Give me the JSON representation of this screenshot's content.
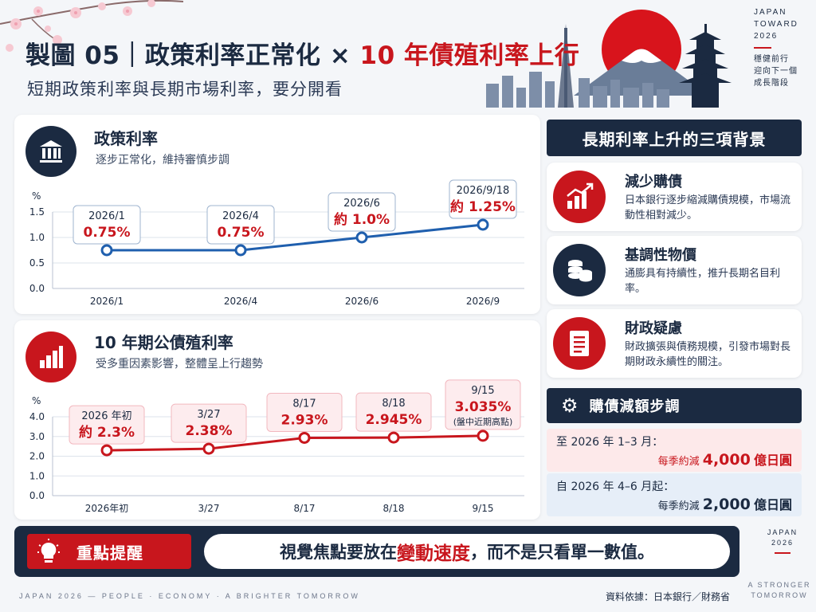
{
  "header": {
    "title_prefix": "製圖 05｜政策利率正常化 × ",
    "title_highlight": "10 年債殖利率上行",
    "subtitle": "短期政策利率與長期市場利率，要分開看"
  },
  "brand": {
    "top_lines": [
      "JAPAN",
      "TOWARD",
      "2026"
    ],
    "top_zh": [
      "穩健前行",
      "迎向下一個",
      "成長階段"
    ],
    "bottom_lines": [
      "JAPAN",
      "2026"
    ],
    "bottom_tag": [
      "A STRONGER",
      "TOMORROW"
    ]
  },
  "policy_card": {
    "title": "政策利率",
    "subtitle": "逐步正常化，維持審慎步調"
  },
  "jgb_card": {
    "title": "10 年期公債殖利率",
    "subtitle": "受多重因素影響，整體呈上行趨勢"
  },
  "chart_data": [
    {
      "type": "line",
      "title": "政策利率",
      "ylabel": "%",
      "ylim": [
        0,
        1.5
      ],
      "yticks": [
        0.0,
        0.5,
        1.0,
        1.5
      ],
      "ytick_labels": [
        "0.0",
        "0.5",
        "1.0",
        "1.5"
      ],
      "categories": [
        "2026/1",
        "2026/4",
        "2026/6",
        "2026/9"
      ],
      "values": [
        0.75,
        0.75,
        1.0,
        1.25
      ],
      "callouts": [
        {
          "date": "2026/1",
          "value": "0.75%",
          "note": ""
        },
        {
          "date": "2026/4",
          "value": "0.75%",
          "note": ""
        },
        {
          "date": "2026/6",
          "value": "約 1.0%",
          "note": ""
        },
        {
          "date": "2026/9/18",
          "value": "約 1.25%",
          "note": ""
        }
      ],
      "color": "#1f5fae",
      "grid": true
    },
    {
      "type": "line",
      "title": "10 年期公債殖利率",
      "ylabel": "%",
      "ylim": [
        0,
        4.0
      ],
      "yticks": [
        0.0,
        1.0,
        2.0,
        3.0,
        4.0
      ],
      "ytick_labels": [
        "0.0",
        "1.0",
        "2.0",
        "3.0",
        "4.0"
      ],
      "categories": [
        "2026年初",
        "3/27",
        "8/17",
        "8/18",
        "9/15"
      ],
      "values": [
        2.3,
        2.38,
        2.93,
        2.945,
        3.035
      ],
      "callouts": [
        {
          "date": "2026 年初",
          "value": "約 2.3%",
          "note": ""
        },
        {
          "date": "3/27",
          "value": "2.38%",
          "note": ""
        },
        {
          "date": "8/17",
          "value": "2.93%",
          "note": ""
        },
        {
          "date": "8/18",
          "value": "2.945%",
          "note": ""
        },
        {
          "date": "9/15",
          "value": "3.035%",
          "note": "(盤中近期高點)"
        }
      ],
      "color": "#c8161d",
      "grid": true
    }
  ],
  "reasons": {
    "heading": "長期利率上升的三項背景",
    "items": [
      {
        "title": "減少購債",
        "desc": "日本銀行逐步縮減購債規模，市場流動性相對減少。"
      },
      {
        "title": "基調性物價",
        "desc": "通膨具有持續性，推升長期名目利率。"
      },
      {
        "title": "財政疑慮",
        "desc": "財政擴張與債務規模，引發市場對長期財政永續性的關注。"
      }
    ]
  },
  "taper": {
    "heading": "購債減額步調",
    "steps": [
      {
        "period": "至 2026 年 1–3 月：",
        "prefix": "每季約減",
        "amount": "4,000",
        "unit": "億日圓"
      },
      {
        "period": "自 2026 年 4–6 月起：",
        "prefix": "每季約減",
        "amount": "2,000",
        "unit": "億日圓"
      }
    ]
  },
  "key_point": {
    "label": "重點提醒",
    "msg_before": "視覺焦點要放在",
    "msg_highlight": "變動速度",
    "msg_after": "，而不是只看單一數值。"
  },
  "footer": {
    "tagline": "JAPAN 2026 — PEOPLE · ECONOMY · A BRIGHTER TOMORROW",
    "source": "資料依據：日本銀行／財務省"
  },
  "colors": {
    "navy": "#1b2a41",
    "red": "#c8161d",
    "blue": "#1f5fae"
  }
}
